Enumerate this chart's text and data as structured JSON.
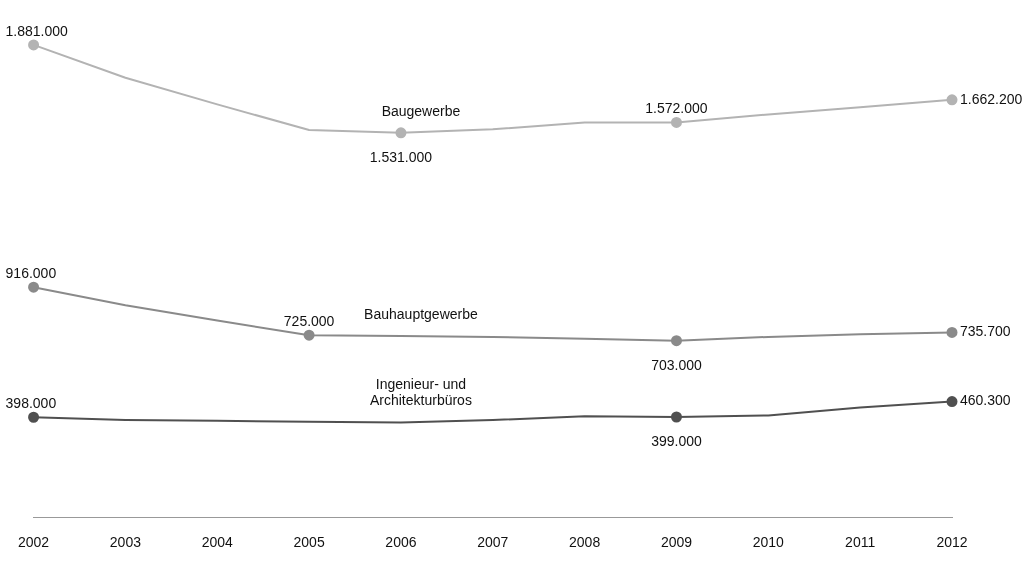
{
  "chart_data": {
    "type": "line",
    "categories": [
      "2002",
      "2003",
      "2004",
      "2005",
      "2006",
      "2007",
      "2008",
      "2009",
      "2010",
      "2011",
      "2012"
    ],
    "series": [
      {
        "name": "Baugewerbe",
        "color": "#b3b3b3",
        "values": [
          1881000,
          1750000,
          1644000,
          1542000,
          1531000,
          1545000,
          1572000,
          1572000,
          1604000,
          1633000,
          1662200
        ],
        "value_labels": [
          "1.881.000",
          null,
          null,
          null,
          "1.531.000",
          null,
          null,
          "1.572.000",
          null,
          null,
          "1.662.200"
        ]
      },
      {
        "name": "Bauhauptgewerbe",
        "color": "#8a8a8a",
        "values": [
          916000,
          844000,
          783000,
          725000,
          722000,
          718000,
          711000,
          703000,
          718000,
          729000,
          735700
        ],
        "value_labels": [
          "916.000",
          null,
          null,
          "725.000",
          null,
          null,
          null,
          "703.000",
          null,
          null,
          "735.700"
        ]
      },
      {
        "name": "Ingenieur- und Architekturbüros",
        "color": "#505050",
        "values": [
          398000,
          387000,
          384000,
          380000,
          377000,
          387000,
          402000,
          399000,
          405000,
          437000,
          460300
        ],
        "value_labels": [
          "398.000",
          null,
          null,
          null,
          null,
          null,
          null,
          "399.000",
          null,
          null,
          "460.300"
        ]
      }
    ],
    "grid": false,
    "legend": false,
    "line_style": "solid",
    "tick_labels": "x"
  }
}
